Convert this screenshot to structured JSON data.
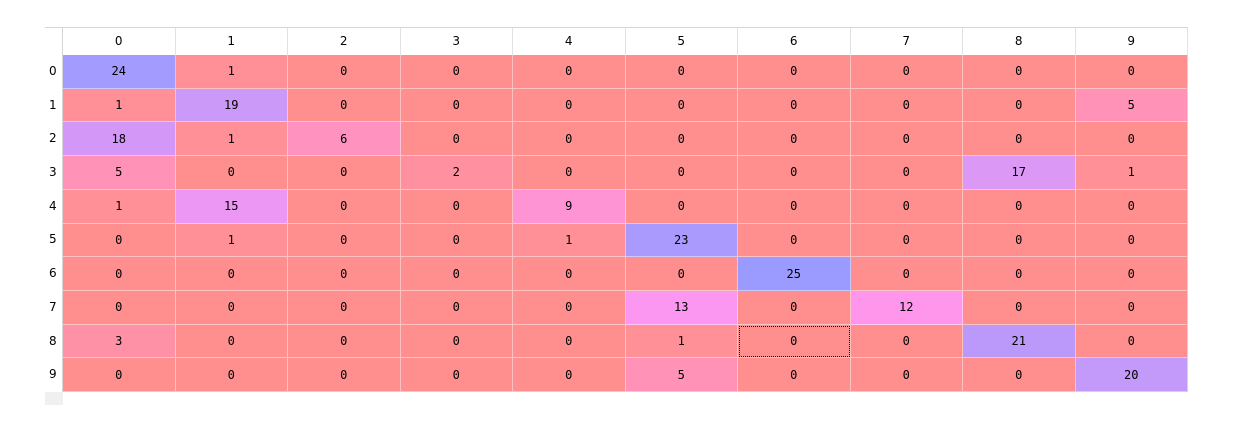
{
  "grid": {
    "column_headers": [
      "0",
      "1",
      "2",
      "3",
      "4",
      "5",
      "6",
      "7",
      "8",
      "9"
    ],
    "row_headers": [
      "0",
      "1",
      "2",
      "3",
      "4",
      "5",
      "6",
      "7",
      "8",
      "9"
    ],
    "values": [
      [
        24,
        1,
        0,
        0,
        0,
        0,
        0,
        0,
        0,
        0
      ],
      [
        1,
        19,
        0,
        0,
        0,
        0,
        0,
        0,
        0,
        5
      ],
      [
        18,
        1,
        6,
        0,
        0,
        0,
        0,
        0,
        0,
        0
      ],
      [
        5,
        0,
        0,
        2,
        0,
        0,
        0,
        0,
        17,
        1
      ],
      [
        1,
        15,
        0,
        0,
        9,
        0,
        0,
        0,
        0,
        0
      ],
      [
        0,
        1,
        0,
        0,
        1,
        23,
        0,
        0,
        0,
        0
      ],
      [
        0,
        0,
        0,
        0,
        0,
        0,
        25,
        0,
        0,
        0
      ],
      [
        0,
        0,
        0,
        0,
        0,
        13,
        0,
        12,
        0,
        0
      ],
      [
        3,
        0,
        0,
        0,
        0,
        1,
        0,
        0,
        21,
        0
      ],
      [
        0,
        0,
        0,
        0,
        0,
        5,
        0,
        0,
        0,
        20
      ]
    ],
    "selected_cell": {
      "row": 8,
      "col": 6
    },
    "color_scale": {
      "low": "#ff8f8f",
      "high": "#9b9bff",
      "value_min": 0,
      "value_max": 25
    }
  }
}
